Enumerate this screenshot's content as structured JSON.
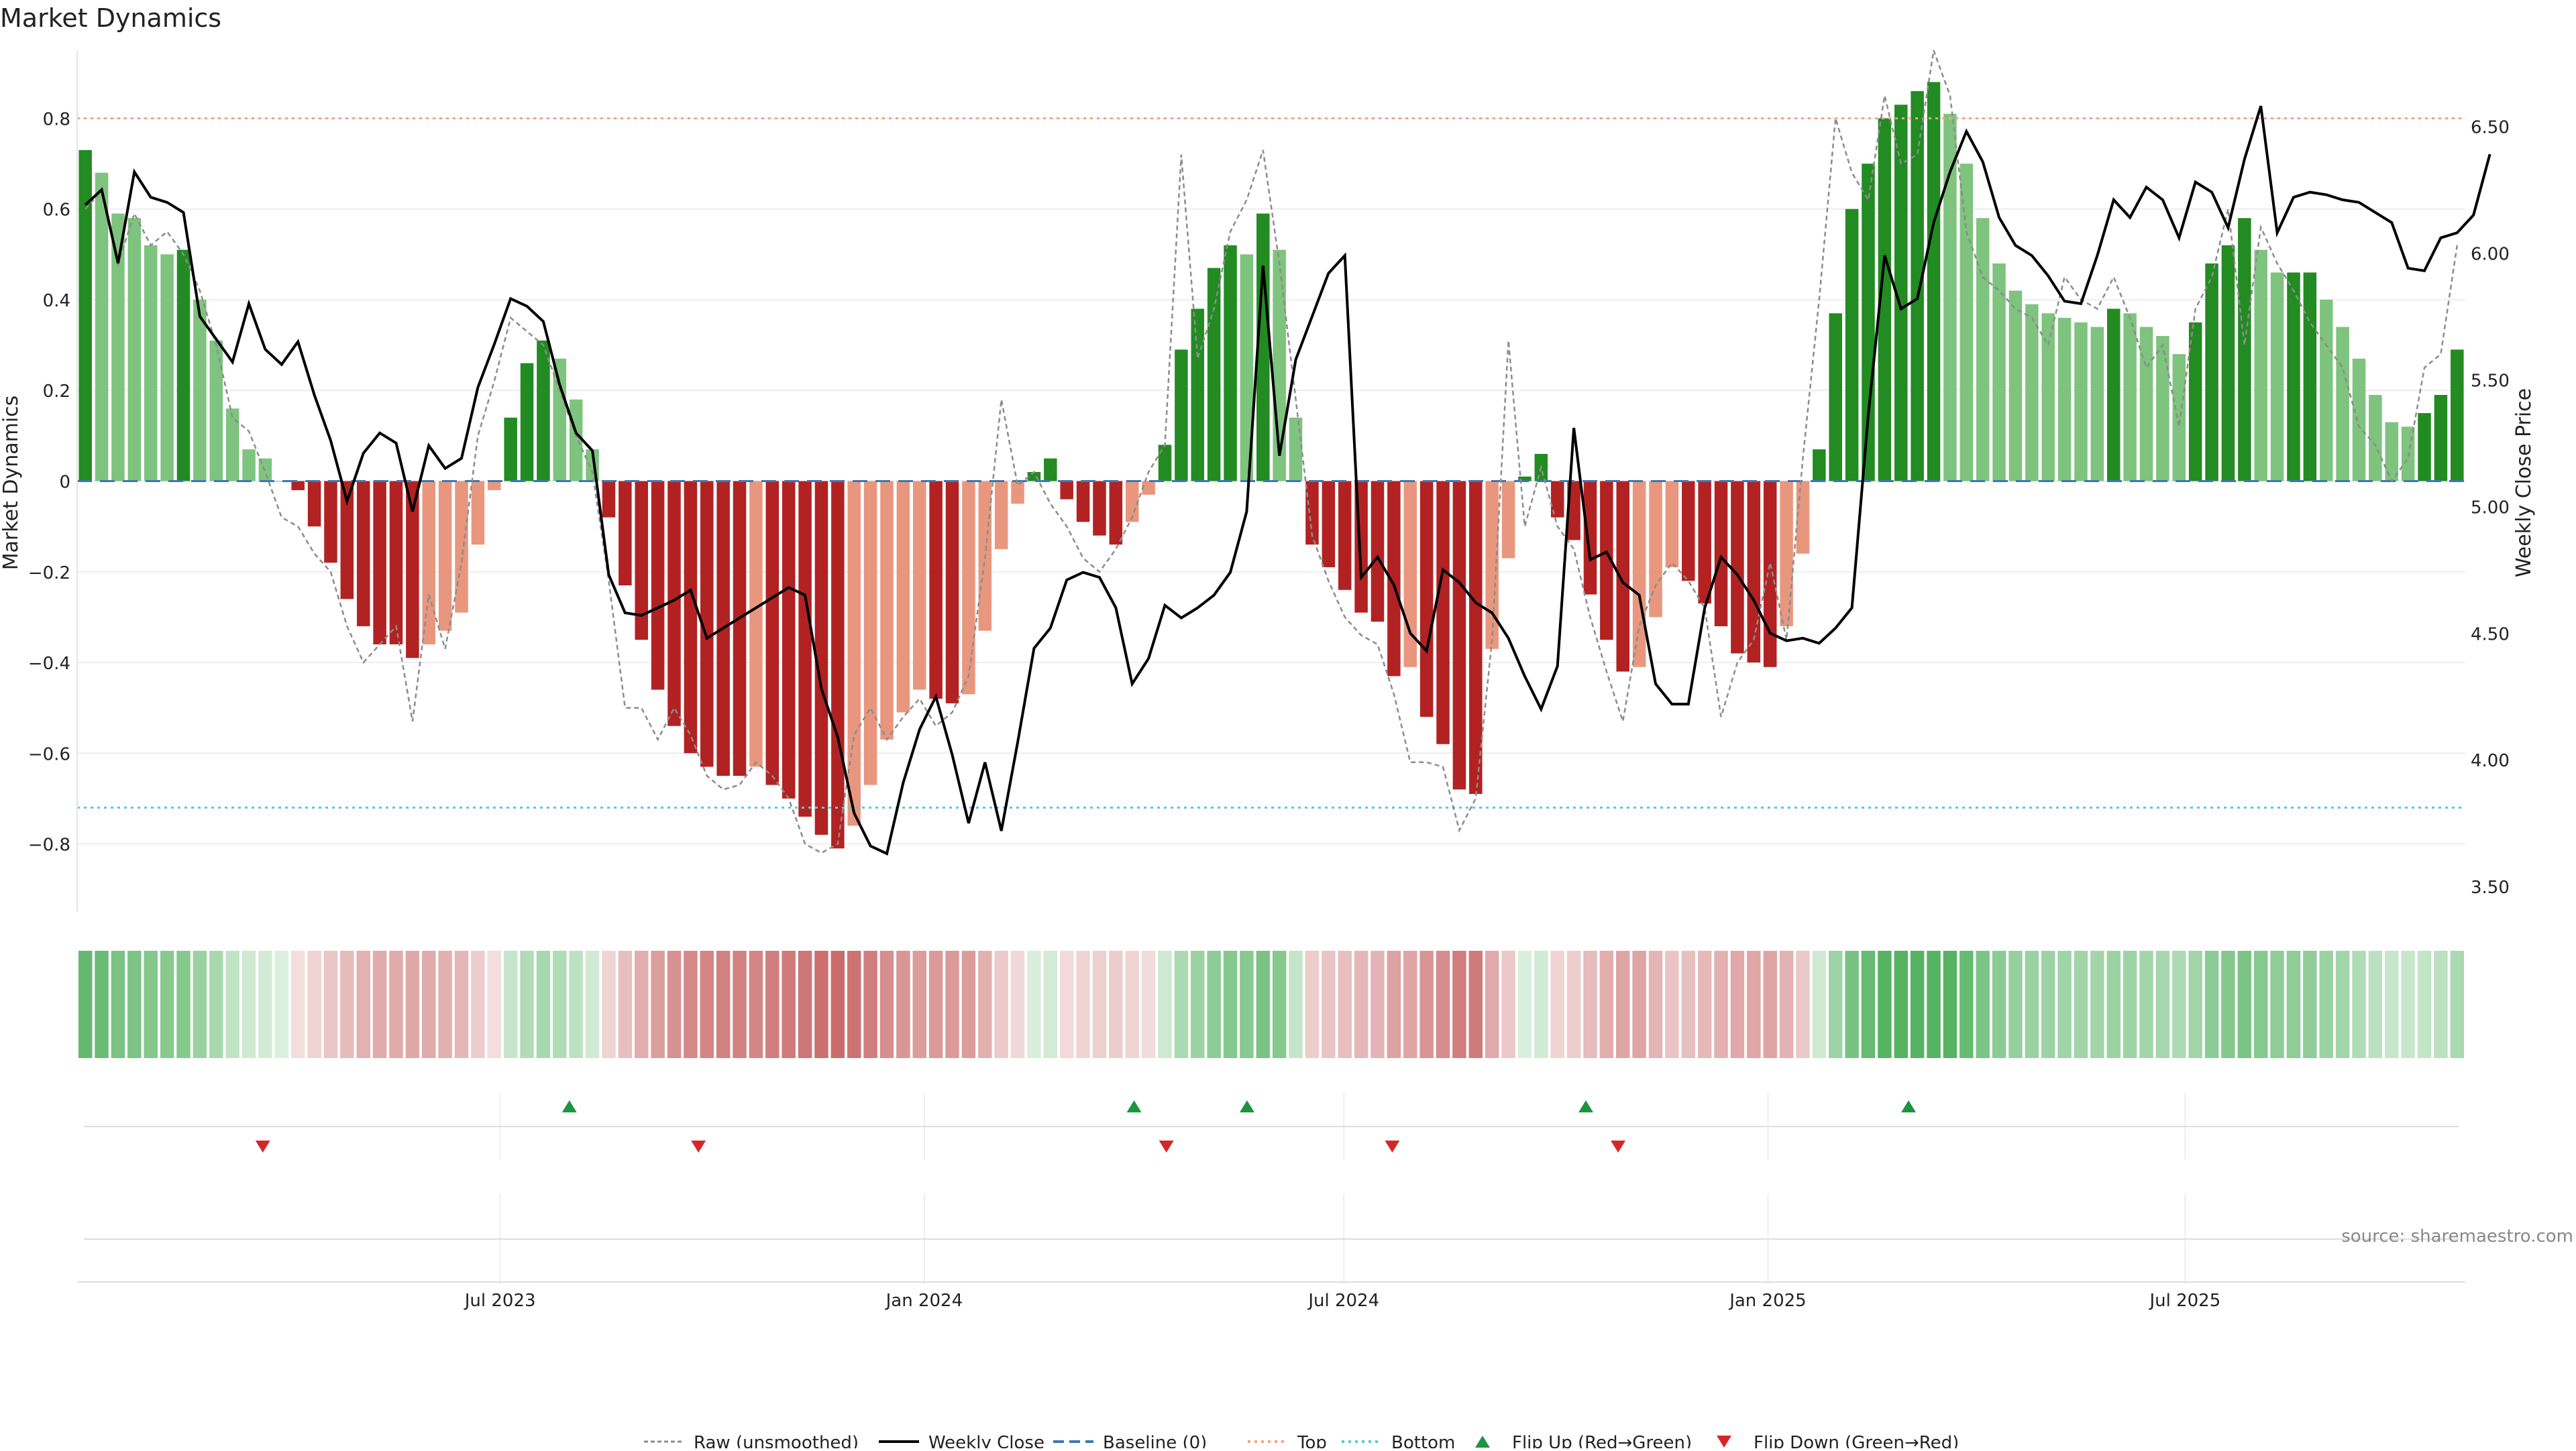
{
  "chart_data": {
    "type": "bar",
    "title": "Market Dynamics",
    "ylabel": "Market Dynamics",
    "ylabel_right": "Weekly Close Price",
    "source": "source: sharemaestro.com",
    "ylim": [
      -0.95,
      0.95
    ],
    "ylim_right": [
      3.4,
      6.8
    ],
    "y_ticks": [
      -0.8,
      -0.6,
      -0.4,
      -0.2,
      0,
      0.2,
      0.4,
      0.6,
      0.8
    ],
    "y_tick_labels": [
      "−0.8",
      "−0.6",
      "−0.4",
      "−0.2",
      "0",
      "0.2",
      "0.4",
      "0.6",
      "0.8"
    ],
    "y2_ticks": [
      3.5,
      4.0,
      4.5,
      5.0,
      5.5,
      6.0,
      6.5
    ],
    "y2_tick_labels": [
      "3.50",
      "4.00",
      "4.50",
      "5.00",
      "5.50",
      "6.00",
      "6.50"
    ],
    "x_start": "2023-01-02",
    "x_end": "2025-10-27",
    "x_ticks": [
      {
        "date": "2023-07-01",
        "label": "Jul 2023"
      },
      {
        "date": "2024-01-01",
        "label": "Jan 2024"
      },
      {
        "date": "2024-07-01",
        "label": "Jul 2024"
      },
      {
        "date": "2025-01-01",
        "label": "Jan 2025"
      },
      {
        "date": "2025-07-01",
        "label": "Jul 2025"
      }
    ],
    "top_level": 0.8,
    "bottom_level": -0.72,
    "baseline": 0,
    "series": [
      {
        "name": "Market Dynamics",
        "values": [
          0.73,
          0.68,
          0.59,
          0.58,
          0.52,
          0.5,
          0.51,
          0.4,
          0.31,
          0.16,
          0.07,
          0.05,
          0.0,
          -0.02,
          -0.1,
          -0.18,
          -0.26,
          -0.32,
          -0.36,
          -0.36,
          -0.39,
          -0.36,
          -0.33,
          -0.29,
          -0.14,
          -0.02,
          0.14,
          0.26,
          0.31,
          0.27,
          0.18,
          0.07,
          -0.08,
          -0.23,
          -0.35,
          -0.46,
          -0.54,
          -0.6,
          -0.63,
          -0.65,
          -0.65,
          -0.63,
          -0.67,
          -0.7,
          -0.74,
          -0.78,
          -0.81,
          -0.76,
          -0.67,
          -0.57,
          -0.51,
          -0.46,
          -0.48,
          -0.49,
          -0.47,
          -0.33,
          -0.15,
          -0.05,
          0.02,
          0.05,
          -0.04,
          -0.09,
          -0.12,
          -0.14,
          -0.09,
          -0.03,
          0.08,
          0.29,
          0.38,
          0.47,
          0.52,
          0.5,
          0.59,
          0.51,
          0.14,
          -0.14,
          -0.19,
          -0.24,
          -0.29,
          -0.31,
          -0.43,
          -0.41,
          -0.52,
          -0.58,
          -0.68,
          -0.69,
          -0.37,
          -0.17,
          0.01,
          0.06,
          -0.08,
          -0.13,
          -0.25,
          -0.35,
          -0.42,
          -0.41,
          -0.3,
          -0.19,
          -0.22,
          -0.27,
          -0.32,
          -0.38,
          -0.4,
          -0.41,
          -0.32,
          -0.16,
          0.07,
          0.37,
          0.6,
          0.7,
          0.8,
          0.83,
          0.86,
          0.88,
          0.81,
          0.7,
          0.58,
          0.48,
          0.42,
          0.39,
          0.37,
          0.36,
          0.35,
          0.34,
          0.38,
          0.37,
          0.34,
          0.32,
          0.28,
          0.35,
          0.48,
          0.52,
          0.58,
          0.51,
          0.46,
          0.46,
          0.46,
          0.4,
          0.34,
          0.27,
          0.19,
          0.13,
          0.12,
          0.15,
          0.19,
          0.29
        ]
      },
      {
        "name": "Raw (unsmoothed)",
        "values": [
          0.6,
          0.64,
          0.48,
          0.59,
          0.52,
          0.55,
          0.5,
          0.42,
          0.3,
          0.14,
          0.11,
          0.02,
          -0.08,
          -0.1,
          -0.16,
          -0.2,
          -0.32,
          -0.4,
          -0.36,
          -0.32,
          -0.53,
          -0.25,
          -0.37,
          -0.18,
          0.1,
          0.22,
          0.36,
          0.33,
          0.3,
          0.2,
          0.1,
          0.02,
          -0.22,
          -0.5,
          -0.5,
          -0.57,
          -0.5,
          -0.56,
          -0.65,
          -0.68,
          -0.67,
          -0.62,
          -0.65,
          -0.7,
          -0.8,
          -0.82,
          -0.8,
          -0.56,
          -0.5,
          -0.57,
          -0.52,
          -0.48,
          -0.54,
          -0.51,
          -0.43,
          -0.17,
          0.18,
          -0.01,
          0.02,
          -0.05,
          -0.1,
          -0.17,
          -0.2,
          -0.15,
          -0.08,
          0.02,
          0.08,
          0.72,
          0.27,
          0.38,
          0.55,
          0.62,
          0.73,
          0.48,
          0.18,
          -0.12,
          -0.22,
          -0.3,
          -0.34,
          -0.36,
          -0.47,
          -0.62,
          -0.62,
          -0.63,
          -0.77,
          -0.7,
          -0.35,
          0.31,
          -0.1,
          0.03,
          -0.1,
          -0.15,
          -0.3,
          -0.42,
          -0.53,
          -0.32,
          -0.23,
          -0.18,
          -0.22,
          -0.28,
          -0.52,
          -0.4,
          -0.35,
          -0.18,
          -0.35,
          0.05,
          0.4,
          0.8,
          0.68,
          0.62,
          0.85,
          0.7,
          0.72,
          0.95,
          0.85,
          0.55,
          0.45,
          0.42,
          0.38,
          0.36,
          0.3,
          0.45,
          0.4,
          0.38,
          0.45,
          0.36,
          0.25,
          0.3,
          0.12,
          0.38,
          0.45,
          0.6,
          0.3,
          0.56,
          0.48,
          0.42,
          0.35,
          0.3,
          0.25,
          0.12,
          0.08,
          0.0,
          0.05,
          0.25,
          0.28,
          0.52
        ]
      },
      {
        "name": "Weekly Close",
        "values": [
          6.19,
          6.25,
          5.96,
          6.32,
          6.22,
          6.2,
          6.16,
          5.75,
          5.66,
          5.57,
          5.8,
          5.62,
          5.56,
          5.65,
          5.44,
          5.26,
          5.02,
          5.21,
          5.29,
          5.25,
          4.98,
          5.24,
          5.15,
          5.19,
          5.47,
          5.64,
          5.82,
          5.79,
          5.73,
          5.48,
          5.29,
          5.22,
          4.73,
          4.58,
          4.57,
          4.6,
          4.63,
          4.67,
          4.48,
          4.52,
          4.56,
          4.6,
          4.64,
          4.68,
          4.65,
          4.28,
          4.09,
          3.79,
          3.66,
          3.63,
          3.91,
          4.12,
          4.25,
          4.02,
          3.75,
          3.99,
          3.72,
          4.07,
          4.44,
          4.52,
          4.71,
          4.74,
          4.72,
          4.6,
          4.3,
          4.4,
          4.61,
          4.56,
          4.6,
          4.65,
          4.74,
          4.98,
          5.95,
          5.2,
          5.58,
          5.75,
          5.92,
          5.99,
          4.72,
          4.8,
          4.69,
          4.5,
          4.43,
          4.75,
          4.7,
          4.62,
          4.58,
          4.48,
          4.33,
          4.2,
          4.37,
          5.31,
          4.79,
          4.82,
          4.7,
          4.65,
          4.3,
          4.22,
          4.22,
          4.6,
          4.8,
          4.73,
          4.63,
          4.5,
          4.47,
          4.48,
          4.46,
          4.52,
          4.6,
          5.36,
          5.99,
          5.78,
          5.82,
          6.12,
          6.32,
          6.48,
          6.36,
          6.14,
          6.03,
          5.99,
          5.91,
          5.81,
          5.8,
          5.99,
          6.21,
          6.14,
          6.26,
          6.21,
          6.06,
          6.28,
          6.24,
          6.1,
          6.37,
          6.58,
          6.08,
          6.22,
          6.24,
          6.23,
          6.21,
          6.2,
          6.16,
          6.12,
          5.94,
          5.93,
          6.06,
          6.08,
          6.15,
          6.39
        ]
      }
    ],
    "strength_band": "weekly heat strip below the main panel (green = positive regime, red = negative regime)",
    "flip_up_dates": [
      "2023-07-31",
      "2024-04-01",
      "2024-05-20",
      "2024-10-14",
      "2025-03-03"
    ],
    "flip_down_dates": [
      "2023-03-20",
      "2023-09-25",
      "2024-04-15",
      "2024-07-22",
      "2024-10-28"
    ],
    "legend_items": [
      "Raw (unsmoothed)",
      "Weekly Close",
      "Baseline (0)",
      "Top",
      "Bottom",
      "Flip Up (Red→Green)",
      "Flip Down (Green→Red)"
    ],
    "legend_placement": "bottom-center",
    "grid": true
  },
  "colors": {
    "strong_green": "#228b22",
    "light_green": "#7ec37e",
    "strong_red": "#b22222",
    "light_red": "#e8977e",
    "raw_line": "#8c8c8c",
    "close_line": "#000000",
    "baseline": "#3a78b5",
    "top": "#f4a582",
    "bottom": "#5bc8d8",
    "flip_up": "#1a9641",
    "flip_down": "#d62728",
    "heat_green": "#4daf5a",
    "heat_red": "#c86464",
    "grid": "#eeeeee",
    "axis_text": "#222222"
  }
}
